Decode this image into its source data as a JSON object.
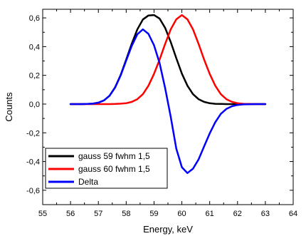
{
  "chart_data": {
    "type": "line",
    "title": "",
    "xlabel": "Energy, keV",
    "ylabel": "Counts",
    "xlim": [
      55,
      64
    ],
    "ylim": [
      -0.7,
      0.66
    ],
    "x_ticks": [
      55,
      56,
      57,
      58,
      59,
      60,
      61,
      62,
      63,
      64
    ],
    "x_tick_labels": [
      "55",
      "56",
      "57",
      "58",
      "59",
      "60",
      "61",
      "62",
      "63",
      "64"
    ],
    "y_ticks": [
      -0.6,
      -0.4,
      -0.2,
      0.0,
      0.2,
      0.4,
      0.6
    ],
    "y_tick_labels": [
      "-0,6",
      "-0,4",
      "-0,2",
      "0,0",
      "0,2",
      "0,4",
      "0,6"
    ],
    "grid": false,
    "legend_position": "bottom-left",
    "series": [
      {
        "name": "gauss 59 fwhm 1,5",
        "color": "#000000",
        "x": [
          56,
          56.2,
          56.4,
          56.6,
          56.8,
          57,
          57.2,
          57.4,
          57.6,
          57.8,
          58,
          58.2,
          58.4,
          58.6,
          58.8,
          59,
          59.2,
          59.4,
          59.6,
          59.8,
          60,
          60.2,
          60.4,
          60.6,
          60.8,
          61,
          61.2,
          61.4,
          61.6,
          61.8,
          62,
          62.2,
          62.4,
          62.6,
          62.8,
          63
        ],
        "y": [
          0.0,
          0.0,
          0.0,
          0.001,
          0.003,
          0.01,
          0.025,
          0.058,
          0.116,
          0.202,
          0.309,
          0.421,
          0.52,
          0.589,
          0.617,
          0.62,
          0.595,
          0.53,
          0.432,
          0.32,
          0.212,
          0.128,
          0.069,
          0.034,
          0.015,
          0.006,
          0.002,
          0.001,
          0.0,
          0.0,
          0.0,
          0.0,
          0.0,
          0.0,
          0.0,
          0.0
        ]
      },
      {
        "name": "gauss 60 fwhm 1,5",
        "color": "#ff0000",
        "x": [
          56,
          56.2,
          56.4,
          56.6,
          56.8,
          57,
          57.2,
          57.4,
          57.6,
          57.8,
          58,
          58.2,
          58.4,
          58.6,
          58.8,
          59,
          59.2,
          59.4,
          59.6,
          59.8,
          60,
          60.2,
          60.4,
          60.6,
          60.8,
          61,
          61.2,
          61.4,
          61.6,
          61.8,
          62,
          62.2,
          62.4,
          62.6,
          62.8,
          63
        ],
        "y": [
          0.0,
          0.0,
          0.0,
          0.0,
          0.0,
          0.0,
          0.0,
          0.0,
          0.001,
          0.003,
          0.006,
          0.015,
          0.034,
          0.069,
          0.128,
          0.21,
          0.31,
          0.42,
          0.52,
          0.59,
          0.62,
          0.59,
          0.52,
          0.42,
          0.31,
          0.21,
          0.128,
          0.069,
          0.034,
          0.015,
          0.006,
          0.002,
          0.001,
          0.0,
          0.0,
          0.0
        ]
      },
      {
        "name": "Delta",
        "color": "#0000ff",
        "x": [
          56,
          56.2,
          56.4,
          56.6,
          56.8,
          57,
          57.2,
          57.4,
          57.6,
          57.8,
          58,
          58.2,
          58.4,
          58.6,
          58.8,
          59,
          59.2,
          59.4,
          59.6,
          59.8,
          60,
          60.2,
          60.4,
          60.6,
          60.8,
          61,
          61.2,
          61.4,
          61.6,
          61.8,
          62,
          62.2,
          62.4,
          62.6,
          62.8,
          63
        ],
        "y": [
          0.0,
          0.0,
          0.0,
          0.001,
          0.003,
          0.01,
          0.025,
          0.058,
          0.115,
          0.199,
          0.303,
          0.406,
          0.486,
          0.52,
          0.489,
          0.41,
          0.285,
          0.11,
          -0.088,
          -0.31,
          -0.44,
          -0.48,
          -0.45,
          -0.386,
          -0.295,
          -0.204,
          -0.126,
          -0.068,
          -0.034,
          -0.015,
          -0.006,
          -0.002,
          -0.001,
          0.0,
          0.0,
          0.0
        ]
      }
    ]
  }
}
